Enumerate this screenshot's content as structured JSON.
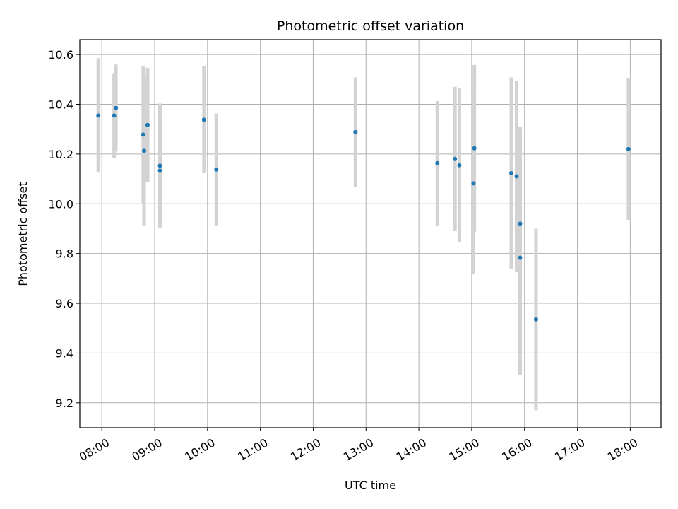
{
  "chart_data": {
    "type": "scatter",
    "title": "Photometric offset variation",
    "xlabel": "UTC time",
    "ylabel": "Photometric offset",
    "xlim": [
      "07:35",
      "18:35"
    ],
    "ylim": [
      9.1,
      10.66
    ],
    "x_ticks": [
      "08:00",
      "09:00",
      "10:00",
      "11:00",
      "12:00",
      "13:00",
      "14:00",
      "15:00",
      "16:00",
      "17:00",
      "18:00"
    ],
    "y_ticks": [
      "9.2",
      "9.4",
      "9.6",
      "9.8",
      "10.0",
      "10.2",
      "10.4",
      "10.6"
    ],
    "grid": true,
    "marker_color": "#1f77b4",
    "errorbar_color": "#d3d3d3",
    "series": [
      {
        "points": [
          {
            "t": "07:56",
            "y": 10.355,
            "err": 0.23
          },
          {
            "t": "08:14",
            "y": 10.355,
            "err": 0.17
          },
          {
            "t": "08:16",
            "y": 10.385,
            "err": 0.175
          },
          {
            "t": "08:47",
            "y": 10.278,
            "err": 0.275
          },
          {
            "t": "08:48",
            "y": 10.213,
            "err": 0.3
          },
          {
            "t": "08:52",
            "y": 10.317,
            "err": 0.23
          },
          {
            "t": "09:06",
            "y": 10.153,
            "err": 0.25
          },
          {
            "t": "09:06",
            "y": 10.133,
            "err": 0.23
          },
          {
            "t": "09:56",
            "y": 10.338,
            "err": 0.215
          },
          {
            "t": "10:10",
            "y": 10.138,
            "err": 0.225
          },
          {
            "t": "12:48",
            "y": 10.288,
            "err": 0.22
          },
          {
            "t": "14:21",
            "y": 10.163,
            "err": 0.25
          },
          {
            "t": "14:41",
            "y": 10.18,
            "err": 0.29
          },
          {
            "t": "14:46",
            "y": 10.155,
            "err": 0.31
          },
          {
            "t": "15:02",
            "y": 10.082,
            "err": 0.365
          },
          {
            "t": "15:03",
            "y": 10.223,
            "err": 0.335
          },
          {
            "t": "15:45",
            "y": 10.123,
            "err": 0.385
          },
          {
            "t": "15:51",
            "y": 10.11,
            "err": 0.385
          },
          {
            "t": "15:55",
            "y": 9.92,
            "err": 0.39
          },
          {
            "t": "15:55",
            "y": 9.783,
            "err": 0.47
          },
          {
            "t": "16:13",
            "y": 9.535,
            "err": 0.365
          },
          {
            "t": "17:58",
            "y": 10.22,
            "err": 0.285
          }
        ]
      }
    ]
  }
}
